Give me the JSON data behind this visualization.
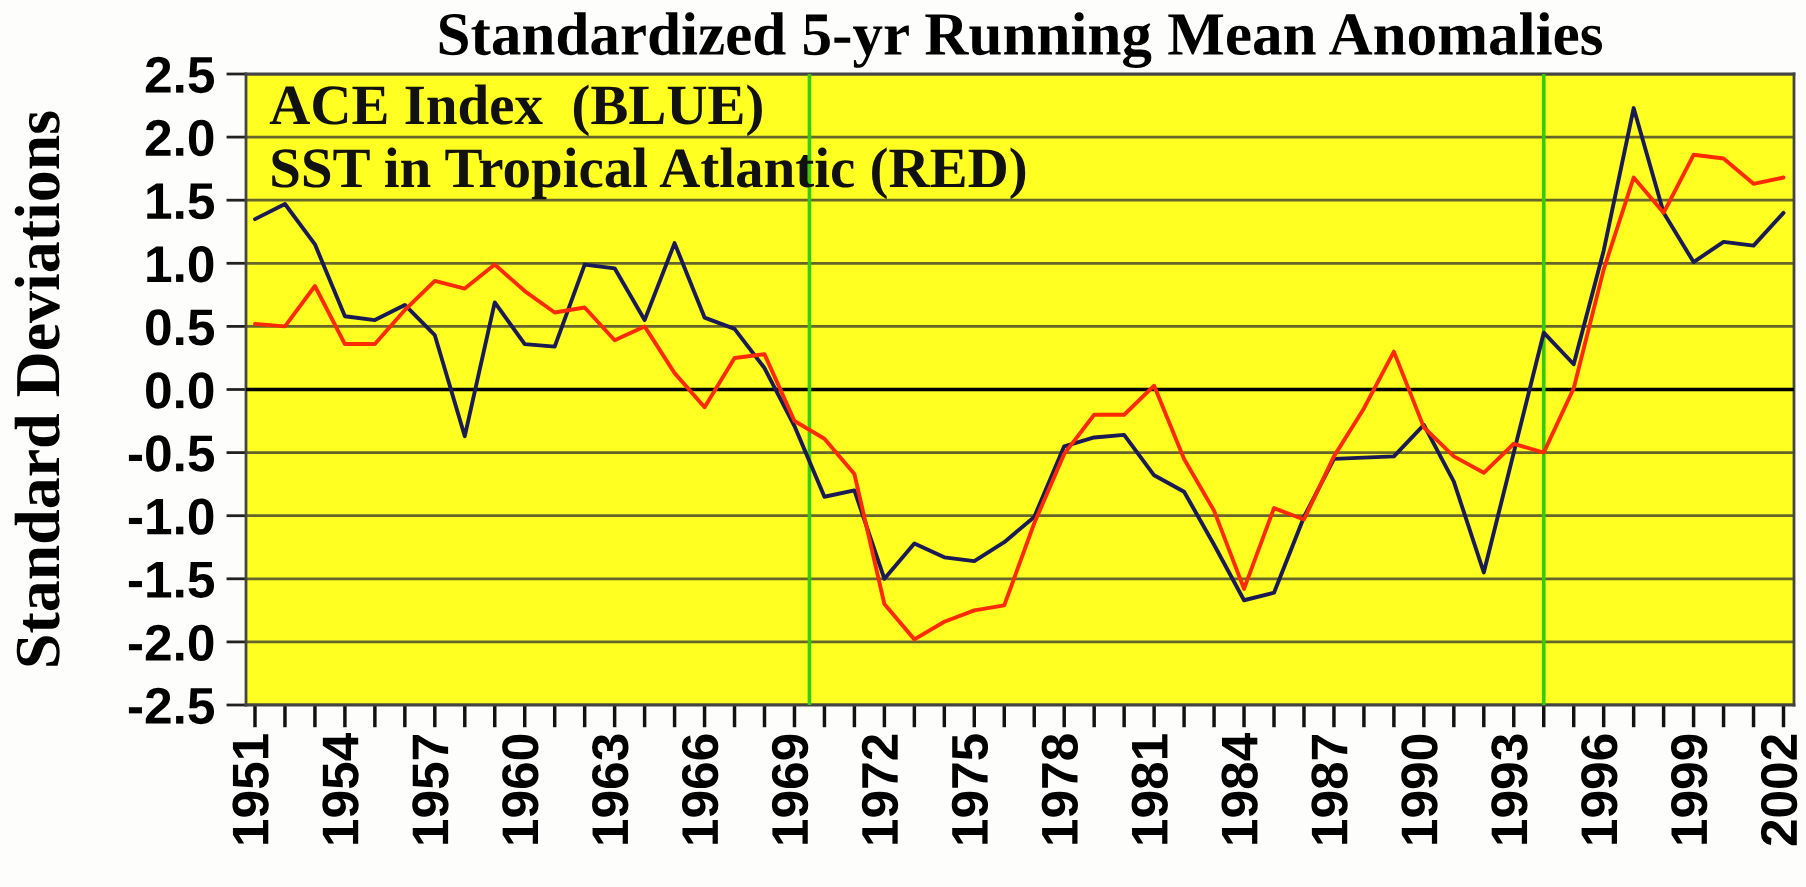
{
  "chart_data": {
    "type": "line",
    "title": "Standardized 5-yr Running Mean Anomalies",
    "ylabel": "Standard Deviations",
    "annotations": [
      "ACE Index  (BLUE)",
      "SST in Tropical Atlantic (RED)"
    ],
    "x": [
      1951,
      1952,
      1953,
      1954,
      1955,
      1956,
      1957,
      1958,
      1959,
      1960,
      1961,
      1962,
      1963,
      1964,
      1965,
      1966,
      1967,
      1968,
      1969,
      1970,
      1971,
      1972,
      1973,
      1974,
      1975,
      1976,
      1977,
      1978,
      1979,
      1980,
      1981,
      1982,
      1983,
      1984,
      1985,
      1986,
      1987,
      1988,
      1989,
      1990,
      1991,
      1992,
      1993,
      1994,
      1995,
      1996,
      1997,
      1998,
      1999,
      2000,
      2001,
      2002
    ],
    "series": [
      {
        "color": "#1a1a55",
        "values": [
          1.35,
          1.47,
          1.15,
          0.58,
          0.55,
          0.67,
          0.43,
          -0.37,
          0.69,
          0.36,
          0.34,
          0.99,
          0.96,
          0.55,
          1.16,
          0.57,
          0.48,
          0.17,
          -0.29,
          -0.85,
          -0.8,
          -1.5,
          -1.22,
          -1.33,
          -1.36,
          -1.21,
          -1.01,
          -0.45,
          -0.38,
          -0.36,
          -0.68,
          -0.81,
          -1.23,
          -1.67,
          -1.61,
          -1.01,
          -0.55,
          -0.54,
          -0.53,
          -0.28,
          -0.73,
          -1.45,
          -0.5,
          0.45,
          0.2,
          1.1,
          2.23,
          1.4,
          1.01,
          1.17,
          1.14,
          1.4
        ]
      },
      {
        "color": "#ff2a00",
        "values": [
          0.52,
          0.5,
          0.82,
          0.36,
          0.36,
          0.63,
          0.86,
          0.8,
          0.99,
          0.78,
          0.61,
          0.65,
          0.39,
          0.5,
          0.13,
          -0.14,
          0.25,
          0.28,
          -0.25,
          -0.39,
          -0.67,
          -1.7,
          -1.98,
          -1.84,
          -1.75,
          -1.71,
          -1.06,
          -0.51,
          -0.2,
          -0.2,
          0.03,
          -0.55,
          -0.96,
          -1.58,
          -0.94,
          -1.03,
          -0.53,
          -0.15,
          0.3,
          -0.3,
          -0.53,
          -0.66,
          -0.43,
          -0.5,
          0.01,
          0.95,
          1.68,
          1.4,
          1.86,
          1.83,
          1.63,
          1.68
        ]
      }
    ],
    "xlim": [
      1950.7,
      2002.35
    ],
    "ylim": [
      -2.5,
      2.5
    ],
    "xticks": [
      1951,
      1954,
      1957,
      1960,
      1963,
      1966,
      1969,
      1972,
      1975,
      1978,
      1981,
      1984,
      1987,
      1990,
      1993,
      1996,
      1999,
      2002
    ],
    "yticks": [
      {
        "value": -2.5,
        "label": "-2.5"
      },
      {
        "value": -2,
        "label": "-2.0"
      },
      {
        "value": -1.5,
        "label": "-1.5"
      },
      {
        "value": -1,
        "label": "-1.0"
      },
      {
        "value": -0.5,
        "label": "-0.5"
      },
      {
        "value": 0,
        "label": "0.0"
      },
      {
        "value": 0.5,
        "label": "0.5"
      },
      {
        "value": 1,
        "label": "1.0"
      },
      {
        "value": 1.5,
        "label": "1.5"
      },
      {
        "value": 2,
        "label": "2.0"
      },
      {
        "value": 2.5,
        "label": "2.5"
      }
    ],
    "grid": "y",
    "ref_lines": [
      {
        "axis": "y",
        "value": 0,
        "color": "#000000"
      },
      {
        "axis": "x",
        "value": 1969.5,
        "color": "#33cc00"
      },
      {
        "axis": "x",
        "value": 1994,
        "color": "#33cc00"
      }
    ]
  }
}
